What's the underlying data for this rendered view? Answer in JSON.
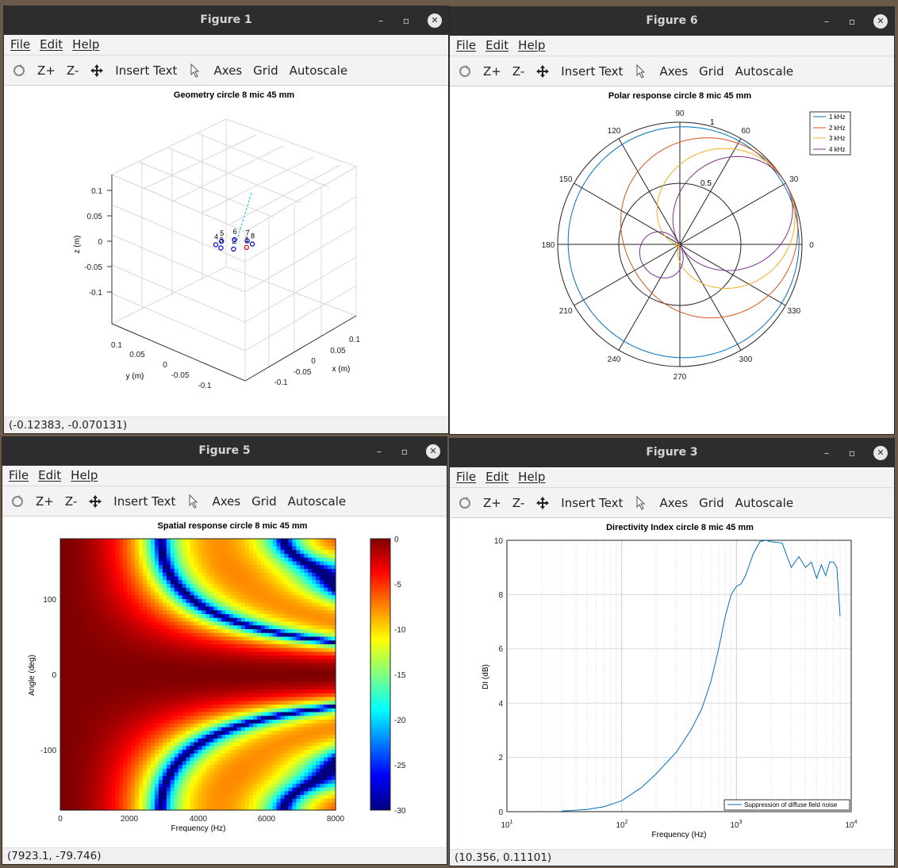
{
  "menu": {
    "file": "File",
    "edit": "Edit",
    "help": "Help"
  },
  "toolbar": {
    "zoom_in": "Z+",
    "zoom_out": "Z-",
    "insert_text": "Insert Text",
    "axes": "Axes",
    "grid": "Grid",
    "autoscale": "Autoscale"
  },
  "icons": [
    "rotate-icon",
    "pan-icon",
    "pointer-icon",
    "minimize-icon",
    "maximize-icon",
    "close-icon"
  ],
  "figures": {
    "f1": {
      "title": "Figure 1",
      "plot_title": "Geometry circle 8 mic 45 mm",
      "status": "(-0.12383, -0.070131)",
      "zlabel": "z (m)",
      "ylabel": "y (m)",
      "xlabel": "x (m)",
      "zticks": [
        "0.1",
        "0.05",
        "0",
        "-0.05",
        "-0.1"
      ],
      "yticks": [
        "0.1",
        "0.05",
        "0",
        "-0.05",
        "-0.1"
      ],
      "xticks": [
        "0.1",
        "0.05",
        "0",
        "-0.05",
        "-0.1"
      ],
      "mic_labels": [
        "1",
        "2",
        "3",
        "4",
        "5",
        "6",
        "7",
        "8"
      ]
    },
    "f6": {
      "title": "Figure 6",
      "plot_title": "Polar response circle 8 mic 45 mm",
      "angle_labels": [
        "0",
        "30",
        "60",
        "90",
        "120",
        "150",
        "180",
        "210",
        "240",
        "270",
        "300",
        "330"
      ],
      "radial_labels": [
        "0.5",
        "1"
      ],
      "legend": [
        "1 kHz",
        "2 kHz",
        "3 kHz",
        "4 kHz"
      ],
      "colors": [
        "#0072bd",
        "#d95319",
        "#edb120",
        "#7e2f8e"
      ]
    },
    "f5": {
      "title": "Figure 5",
      "plot_title": "Spatial response circle 8 mic 45 mm",
      "status": "(7923.1, -79.746)",
      "xlabel": "Frequency (Hz)",
      "ylabel": "Angle (deg)",
      "xticks": [
        "0",
        "2000",
        "4000",
        "6000",
        "8000"
      ],
      "yticks": [
        "100",
        "0",
        "-100"
      ],
      "cbticks": [
        "0",
        "-5",
        "-10",
        "-15",
        "-20",
        "-25",
        "-30"
      ]
    },
    "f3": {
      "title": "Figure 3",
      "plot_title": "Directivity Index circle 8 mic 45 mm",
      "status": "(10.356, 0.11101)",
      "xlabel": "Frequency (Hz)",
      "ylabel": "DI (dB)",
      "yticks": [
        "10",
        "8",
        "6",
        "4",
        "2",
        "0"
      ],
      "xticks": [
        "10",
        "10",
        "10",
        "10"
      ],
      "xexp": [
        "1",
        "2",
        "3",
        "4"
      ],
      "legend": "Suppression of diffuse field noise"
    }
  },
  "chart_data": [
    {
      "type": "scatter",
      "title": "Geometry circle 8 mic 45 mm",
      "xlabel": "x (m)",
      "ylabel": "y (m)",
      "zlabel": "z (m)",
      "points": [
        {
          "label": "1",
          "x": 0.045,
          "y": 0,
          "z": 0
        },
        {
          "label": "2",
          "x": 0.032,
          "y": 0.032,
          "z": 0
        },
        {
          "label": "3",
          "x": 0,
          "y": 0.045,
          "z": 0
        },
        {
          "label": "4",
          "x": -0.032,
          "y": 0.032,
          "z": 0
        },
        {
          "label": "5",
          "x": -0.045,
          "y": 0,
          "z": 0
        },
        {
          "label": "6",
          "x": -0.032,
          "y": -0.032,
          "z": 0
        },
        {
          "label": "7",
          "x": 0,
          "y": -0.045,
          "z": 0
        },
        {
          "label": "8",
          "x": 0.032,
          "y": -0.032,
          "z": 0
        }
      ],
      "xlim": [
        -0.1,
        0.1
      ],
      "ylim": [
        -0.1,
        0.1
      ],
      "zlim": [
        -0.1,
        0.1
      ],
      "grid": true
    },
    {
      "type": "line",
      "title": "Polar response circle 8 mic 45 mm",
      "rlim": [
        0,
        1
      ],
      "grid": true,
      "legend_position": "top-right",
      "series": [
        {
          "name": "1 kHz",
          "type": "circle-ish",
          "max": 0.98
        },
        {
          "name": "2 kHz",
          "lobe_deg": 30
        },
        {
          "name": "3 kHz",
          "lobe_deg": 30
        },
        {
          "name": "4 kHz",
          "lobe_deg": 30
        }
      ]
    },
    {
      "type": "heatmap",
      "title": "Spatial response circle 8 mic 45 mm",
      "xlabel": "Frequency (Hz)",
      "ylabel": "Angle (deg)",
      "xlim": [
        0,
        8000
      ],
      "ylim": [
        -180,
        180
      ],
      "clim": [
        -30,
        0
      ],
      "colormap": "jet"
    },
    {
      "type": "line",
      "title": "Directivity Index circle 8 mic 45 mm",
      "xlabel": "Frequency (Hz)",
      "ylabel": "DI (dB)",
      "xscale": "log",
      "xlim": [
        10,
        10000
      ],
      "ylim": [
        0,
        10
      ],
      "grid": true,
      "legend_position": "bottom-right",
      "series": [
        {
          "name": "Suppression of diffuse field noise",
          "x": [
            30,
            50,
            70,
            100,
            150,
            200,
            300,
            400,
            500,
            600,
            700,
            800,
            900,
            1000,
            1100,
            1200,
            1400,
            1600,
            1800,
            2000,
            2500,
            3000,
            3500,
            4000,
            4500,
            5000,
            5500,
            6000,
            6500,
            7000,
            7500,
            8000
          ],
          "y": [
            0.02,
            0.08,
            0.18,
            0.4,
            0.9,
            1.4,
            2.2,
            3.0,
            3.8,
            4.8,
            6.0,
            7.2,
            8.0,
            8.3,
            8.4,
            8.7,
            9.5,
            9.95,
            10.0,
            9.95,
            9.9,
            9.0,
            9.4,
            9.0,
            9.2,
            8.6,
            9.1,
            8.7,
            9.2,
            9.2,
            9.0,
            7.2
          ]
        }
      ]
    }
  ]
}
